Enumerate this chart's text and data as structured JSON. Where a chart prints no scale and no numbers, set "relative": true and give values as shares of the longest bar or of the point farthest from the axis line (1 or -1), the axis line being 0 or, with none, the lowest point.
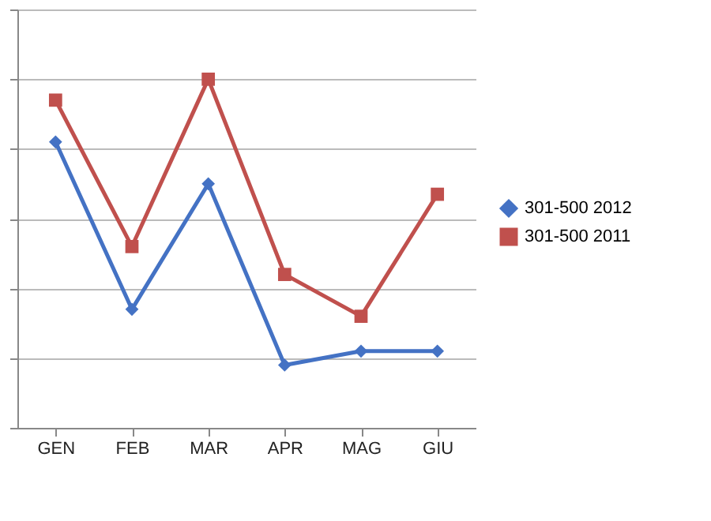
{
  "chart_data": {
    "type": "line",
    "relative": true,
    "categories": [
      "GEN",
      "FEB",
      "MAR",
      "APR",
      "MAG",
      "GIU"
    ],
    "series": [
      {
        "name": "301-500 2012",
        "color": "#4472c4",
        "marker": "diamond",
        "values": [
          0.82,
          0.34,
          0.7,
          0.18,
          0.22,
          0.22
        ]
      },
      {
        "name": "301-500 2011",
        "color": "#c0504d",
        "marker": "square",
        "values": [
          0.94,
          0.52,
          1,
          0.44,
          0.32,
          0.67
        ]
      }
    ],
    "grid": "y",
    "legend": "right",
    "line_style": "solid"
  }
}
